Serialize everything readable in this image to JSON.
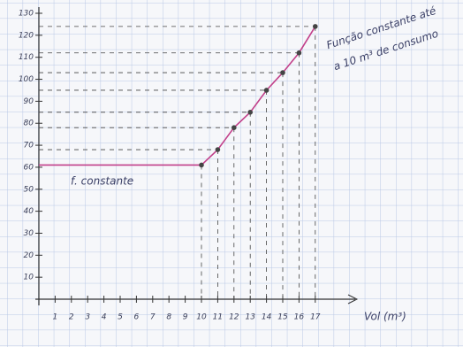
{
  "chart_data": {
    "type": "line",
    "x_label": "Vol (m³)",
    "annotations": [
      "f. constante",
      "Função constante até",
      "a 10 m³ de consumo"
    ],
    "x": [
      0,
      10,
      11,
      12,
      13,
      14,
      15,
      16,
      17
    ],
    "series": [
      {
        "color": "#c2408a",
        "values": [
          61,
          61,
          68,
          78,
          85,
          95,
          103,
          112,
          124
        ]
      }
    ],
    "xlim": [
      0,
      19
    ],
    "ylim": [
      0,
      130
    ],
    "xticks": [
      1,
      2,
      3,
      4,
      5,
      6,
      7,
      8,
      9,
      10,
      11,
      12,
      13,
      14,
      15,
      16,
      17
    ],
    "yticks": [
      10,
      20,
      30,
      40,
      50,
      60,
      70,
      80,
      90,
      100,
      110,
      120,
      130
    ]
  }
}
